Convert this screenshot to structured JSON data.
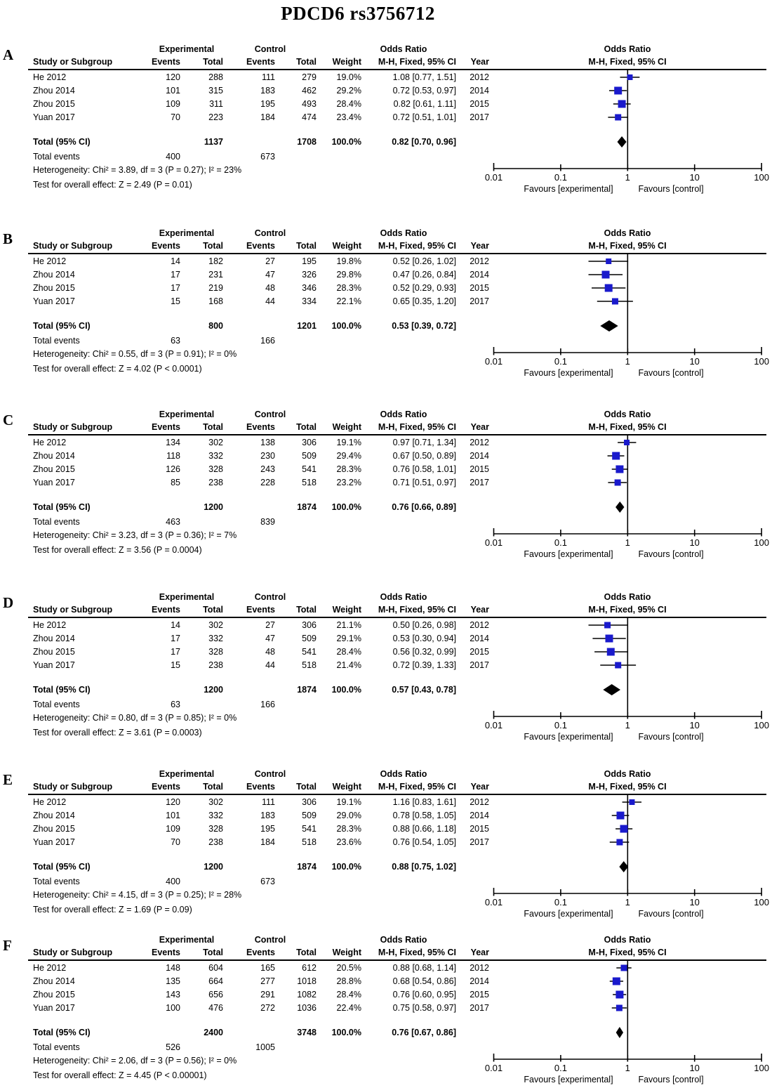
{
  "title": "PDCD6 rs3756712",
  "colors": {
    "marker": "#1a1acc",
    "diamond": "#000000",
    "line": "#000000",
    "text": "#000000"
  },
  "table_headers": {
    "group_experimental": "Experimental",
    "group_control": "Control",
    "odds_ratio": "Odds Ratio",
    "study": "Study or Subgroup",
    "events": "Events",
    "total": "Total",
    "weight": "Weight",
    "method": "M-H, Fixed, 95% CI",
    "year": "Year"
  },
  "plot_headers": {
    "line1": "Odds Ratio",
    "line2": "M-H, Fixed, 95% CI"
  },
  "axis": {
    "scale": "log",
    "favours_left": "Favours [experimental]",
    "favours_right": "Favours [control]"
  },
  "chart_data": [
    {
      "type": "forest",
      "panel_label": "A",
      "x_scale": "log",
      "null_line": 1,
      "x_ticks": [
        0.01,
        0.1,
        1,
        10,
        100
      ],
      "x_tick_labels": [
        "0.01",
        "0.1",
        "1",
        "10",
        "100"
      ],
      "studies": [
        {
          "study": "He 2012",
          "exp_events": "120",
          "exp_total": "288",
          "ctl_events": "111",
          "ctl_total": "279",
          "weight": "19.0%",
          "weight_pct": 19.0,
          "or": 1.08,
          "ci_low": 0.77,
          "ci_high": 1.51,
          "or_text": "1.08 [0.77, 1.51]",
          "year": "2012"
        },
        {
          "study": "Zhou 2014",
          "exp_events": "101",
          "exp_total": "315",
          "ctl_events": "183",
          "ctl_total": "462",
          "weight": "29.2%",
          "weight_pct": 29.2,
          "or": 0.72,
          "ci_low": 0.53,
          "ci_high": 0.97,
          "or_text": "0.72 [0.53, 0.97]",
          "year": "2014"
        },
        {
          "study": "Zhou 2015",
          "exp_events": "109",
          "exp_total": "311",
          "ctl_events": "195",
          "ctl_total": "493",
          "weight": "28.4%",
          "weight_pct": 28.4,
          "or": 0.82,
          "ci_low": 0.61,
          "ci_high": 1.11,
          "or_text": "0.82 [0.61, 1.11]",
          "year": "2015"
        },
        {
          "study": "Yuan 2017",
          "exp_events": "70",
          "exp_total": "223",
          "ctl_events": "184",
          "ctl_total": "474",
          "weight": "23.4%",
          "weight_pct": 23.4,
          "or": 0.72,
          "ci_low": 0.51,
          "ci_high": 1.01,
          "or_text": "0.72 [0.51, 1.01]",
          "year": "2017"
        }
      ],
      "total": {
        "label": "Total (95% CI)",
        "exp_total": "1137",
        "ctl_total": "1708",
        "weight": "100.0%",
        "or": 0.82,
        "ci_low": 0.7,
        "ci_high": 0.96,
        "or_text": "0.82 [0.70, 0.96]"
      },
      "total_events": {
        "label": "Total events",
        "exp": "400",
        "ctl": "673"
      },
      "heterogeneity": "Heterogeneity: Chi² = 3.89, df = 3 (P = 0.27); I² = 23%",
      "overall_effect": "Test for overall effect: Z = 2.49 (P = 0.01)"
    },
    {
      "type": "forest",
      "panel_label": "B",
      "x_scale": "log",
      "null_line": 1,
      "x_ticks": [
        0.01,
        0.1,
        1,
        10,
        100
      ],
      "x_tick_labels": [
        "0.01",
        "0.1",
        "1",
        "10",
        "100"
      ],
      "studies": [
        {
          "study": "He 2012",
          "exp_events": "14",
          "exp_total": "182",
          "ctl_events": "27",
          "ctl_total": "195",
          "weight": "19.8%",
          "weight_pct": 19.8,
          "or": 0.52,
          "ci_low": 0.26,
          "ci_high": 1.02,
          "or_text": "0.52 [0.26, 1.02]",
          "year": "2012"
        },
        {
          "study": "Zhou 2014",
          "exp_events": "17",
          "exp_total": "231",
          "ctl_events": "47",
          "ctl_total": "326",
          "weight": "29.8%",
          "weight_pct": 29.8,
          "or": 0.47,
          "ci_low": 0.26,
          "ci_high": 0.84,
          "or_text": "0.47 [0.26, 0.84]",
          "year": "2014"
        },
        {
          "study": "Zhou 2015",
          "exp_events": "17",
          "exp_total": "219",
          "ctl_events": "48",
          "ctl_total": "346",
          "weight": "28.3%",
          "weight_pct": 28.3,
          "or": 0.52,
          "ci_low": 0.29,
          "ci_high": 0.93,
          "or_text": "0.52 [0.29, 0.93]",
          "year": "2015"
        },
        {
          "study": "Yuan 2017",
          "exp_events": "15",
          "exp_total": "168",
          "ctl_events": "44",
          "ctl_total": "334",
          "weight": "22.1%",
          "weight_pct": 22.1,
          "or": 0.65,
          "ci_low": 0.35,
          "ci_high": 1.2,
          "or_text": "0.65 [0.35, 1.20]",
          "year": "2017"
        }
      ],
      "total": {
        "label": "Total (95% CI)",
        "exp_total": "800",
        "ctl_total": "1201",
        "weight": "100.0%",
        "or": 0.53,
        "ci_low": 0.39,
        "ci_high": 0.72,
        "or_text": "0.53 [0.39, 0.72]"
      },
      "total_events": {
        "label": "Total events",
        "exp": "63",
        "ctl": "166"
      },
      "heterogeneity": "Heterogeneity: Chi² = 0.55, df = 3 (P = 0.91); I² = 0%",
      "overall_effect": "Test for overall effect: Z = 4.02 (P < 0.0001)"
    },
    {
      "type": "forest",
      "panel_label": "C",
      "x_scale": "log",
      "null_line": 1,
      "x_ticks": [
        0.01,
        0.1,
        1,
        10,
        100
      ],
      "x_tick_labels": [
        "0.01",
        "0.1",
        "1",
        "10",
        "100"
      ],
      "studies": [
        {
          "study": "He 2012",
          "exp_events": "134",
          "exp_total": "302",
          "ctl_events": "138",
          "ctl_total": "306",
          "weight": "19.1%",
          "weight_pct": 19.1,
          "or": 0.97,
          "ci_low": 0.71,
          "ci_high": 1.34,
          "or_text": "0.97 [0.71, 1.34]",
          "year": "2012"
        },
        {
          "study": "Zhou 2014",
          "exp_events": "118",
          "exp_total": "332",
          "ctl_events": "230",
          "ctl_total": "509",
          "weight": "29.4%",
          "weight_pct": 29.4,
          "or": 0.67,
          "ci_low": 0.5,
          "ci_high": 0.89,
          "or_text": "0.67 [0.50, 0.89]",
          "year": "2014"
        },
        {
          "study": "Zhou 2015",
          "exp_events": "126",
          "exp_total": "328",
          "ctl_events": "243",
          "ctl_total": "541",
          "weight": "28.3%",
          "weight_pct": 28.3,
          "or": 0.76,
          "ci_low": 0.58,
          "ci_high": 1.01,
          "or_text": "0.76 [0.58, 1.01]",
          "year": "2015"
        },
        {
          "study": "Yuan 2017",
          "exp_events": "85",
          "exp_total": "238",
          "ctl_events": "228",
          "ctl_total": "518",
          "weight": "23.2%",
          "weight_pct": 23.2,
          "or": 0.71,
          "ci_low": 0.51,
          "ci_high": 0.97,
          "or_text": "0.71 [0.51, 0.97]",
          "year": "2017"
        }
      ],
      "total": {
        "label": "Total (95% CI)",
        "exp_total": "1200",
        "ctl_total": "1874",
        "weight": "100.0%",
        "or": 0.76,
        "ci_low": 0.66,
        "ci_high": 0.89,
        "or_text": "0.76 [0.66, 0.89]"
      },
      "total_events": {
        "label": "Total events",
        "exp": "463",
        "ctl": "839"
      },
      "heterogeneity": "Heterogeneity: Chi² = 3.23, df = 3 (P = 0.36); I² = 7%",
      "overall_effect": "Test for overall effect: Z = 3.56 (P = 0.0004)"
    },
    {
      "type": "forest",
      "panel_label": "D",
      "x_scale": "log",
      "null_line": 1,
      "x_ticks": [
        0.01,
        0.1,
        1,
        10,
        100
      ],
      "x_tick_labels": [
        "0.01",
        "0.1",
        "1",
        "10",
        "100"
      ],
      "studies": [
        {
          "study": "He 2012",
          "exp_events": "14",
          "exp_total": "302",
          "ctl_events": "27",
          "ctl_total": "306",
          "weight": "21.1%",
          "weight_pct": 21.1,
          "or": 0.5,
          "ci_low": 0.26,
          "ci_high": 0.98,
          "or_text": "0.50 [0.26, 0.98]",
          "year": "2012"
        },
        {
          "study": "Zhou 2014",
          "exp_events": "17",
          "exp_total": "332",
          "ctl_events": "47",
          "ctl_total": "509",
          "weight": "29.1%",
          "weight_pct": 29.1,
          "or": 0.53,
          "ci_low": 0.3,
          "ci_high": 0.94,
          "or_text": "0.53 [0.30, 0.94]",
          "year": "2014"
        },
        {
          "study": "Zhou 2015",
          "exp_events": "17",
          "exp_total": "328",
          "ctl_events": "48",
          "ctl_total": "541",
          "weight": "28.4%",
          "weight_pct": 28.4,
          "or": 0.56,
          "ci_low": 0.32,
          "ci_high": 0.99,
          "or_text": "0.56 [0.32, 0.99]",
          "year": "2015"
        },
        {
          "study": "Yuan 2017",
          "exp_events": "15",
          "exp_total": "238",
          "ctl_events": "44",
          "ctl_total": "518",
          "weight": "21.4%",
          "weight_pct": 21.4,
          "or": 0.72,
          "ci_low": 0.39,
          "ci_high": 1.33,
          "or_text": "0.72 [0.39, 1.33]",
          "year": "2017"
        }
      ],
      "total": {
        "label": "Total (95% CI)",
        "exp_total": "1200",
        "ctl_total": "1874",
        "weight": "100.0%",
        "or": 0.57,
        "ci_low": 0.43,
        "ci_high": 0.78,
        "or_text": "0.57 [0.43, 0.78]"
      },
      "total_events": {
        "label": "Total events",
        "exp": "63",
        "ctl": "166"
      },
      "heterogeneity": "Heterogeneity: Chi² = 0.80, df = 3 (P = 0.85); I² = 0%",
      "overall_effect": "Test for overall effect: Z = 3.61 (P = 0.0003)"
    },
    {
      "type": "forest",
      "panel_label": "E",
      "x_scale": "log",
      "null_line": 1,
      "x_ticks": [
        0.01,
        0.1,
        1,
        10,
        100
      ],
      "x_tick_labels": [
        "0.01",
        "0.1",
        "1",
        "10",
        "100"
      ],
      "studies": [
        {
          "study": "He 2012",
          "exp_events": "120",
          "exp_total": "302",
          "ctl_events": "111",
          "ctl_total": "306",
          "weight": "19.1%",
          "weight_pct": 19.1,
          "or": 1.16,
          "ci_low": 0.83,
          "ci_high": 1.61,
          "or_text": "1.16 [0.83, 1.61]",
          "year": "2012"
        },
        {
          "study": "Zhou 2014",
          "exp_events": "101",
          "exp_total": "332",
          "ctl_events": "183",
          "ctl_total": "509",
          "weight": "29.0%",
          "weight_pct": 29.0,
          "or": 0.78,
          "ci_low": 0.58,
          "ci_high": 1.05,
          "or_text": "0.78 [0.58, 1.05]",
          "year": "2014"
        },
        {
          "study": "Zhou 2015",
          "exp_events": "109",
          "exp_total": "328",
          "ctl_events": "195",
          "ctl_total": "541",
          "weight": "28.3%",
          "weight_pct": 28.3,
          "or": 0.88,
          "ci_low": 0.66,
          "ci_high": 1.18,
          "or_text": "0.88 [0.66, 1.18]",
          "year": "2015"
        },
        {
          "study": "Yuan 2017",
          "exp_events": "70",
          "exp_total": "238",
          "ctl_events": "184",
          "ctl_total": "518",
          "weight": "23.6%",
          "weight_pct": 23.6,
          "or": 0.76,
          "ci_low": 0.54,
          "ci_high": 1.05,
          "or_text": "0.76 [0.54, 1.05]",
          "year": "2017"
        }
      ],
      "total": {
        "label": "Total (95% CI)",
        "exp_total": "1200",
        "ctl_total": "1874",
        "weight": "100.0%",
        "or": 0.88,
        "ci_low": 0.75,
        "ci_high": 1.02,
        "or_text": "0.88 [0.75, 1.02]"
      },
      "total_events": {
        "label": "Total events",
        "exp": "400",
        "ctl": "673"
      },
      "heterogeneity": "Heterogeneity: Chi² = 4.15, df = 3 (P = 0.25); I² = 28%",
      "overall_effect": "Test for overall effect: Z = 1.69 (P = 0.09)"
    },
    {
      "type": "forest",
      "panel_label": "F",
      "x_scale": "log",
      "null_line": 1,
      "x_ticks": [
        0.01,
        0.1,
        1,
        10,
        100
      ],
      "x_tick_labels": [
        "0.01",
        "0.1",
        "1",
        "10",
        "100"
      ],
      "studies": [
        {
          "study": "He 2012",
          "exp_events": "148",
          "exp_total": "604",
          "ctl_events": "165",
          "ctl_total": "612",
          "weight": "20.5%",
          "weight_pct": 20.5,
          "or": 0.88,
          "ci_low": 0.68,
          "ci_high": 1.14,
          "or_text": "0.88 [0.68, 1.14]",
          "year": "2012"
        },
        {
          "study": "Zhou 2014",
          "exp_events": "135",
          "exp_total": "664",
          "ctl_events": "277",
          "ctl_total": "1018",
          "weight": "28.8%",
          "weight_pct": 28.8,
          "or": 0.68,
          "ci_low": 0.54,
          "ci_high": 0.86,
          "or_text": "0.68 [0.54, 0.86]",
          "year": "2014"
        },
        {
          "study": "Zhou 2015",
          "exp_events": "143",
          "exp_total": "656",
          "ctl_events": "291",
          "ctl_total": "1082",
          "weight": "28.4%",
          "weight_pct": 28.4,
          "or": 0.76,
          "ci_low": 0.6,
          "ci_high": 0.95,
          "or_text": "0.76 [0.60, 0.95]",
          "year": "2015"
        },
        {
          "study": "Yuan 2017",
          "exp_events": "100",
          "exp_total": "476",
          "ctl_events": "272",
          "ctl_total": "1036",
          "weight": "22.4%",
          "weight_pct": 22.4,
          "or": 0.75,
          "ci_low": 0.58,
          "ci_high": 0.97,
          "or_text": "0.75 [0.58, 0.97]",
          "year": "2017"
        }
      ],
      "total": {
        "label": "Total (95% CI)",
        "exp_total": "2400",
        "ctl_total": "3748",
        "weight": "100.0%",
        "or": 0.76,
        "ci_low": 0.67,
        "ci_high": 0.86,
        "or_text": "0.76 [0.67, 0.86]"
      },
      "total_events": {
        "label": "Total events",
        "exp": "526",
        "ctl": "1005"
      },
      "heterogeneity": "Heterogeneity: Chi² = 2.06, df = 3 (P = 0.56); I² = 0%",
      "overall_effect": "Test for overall effect: Z = 4.45 (P < 0.00001)"
    }
  ]
}
